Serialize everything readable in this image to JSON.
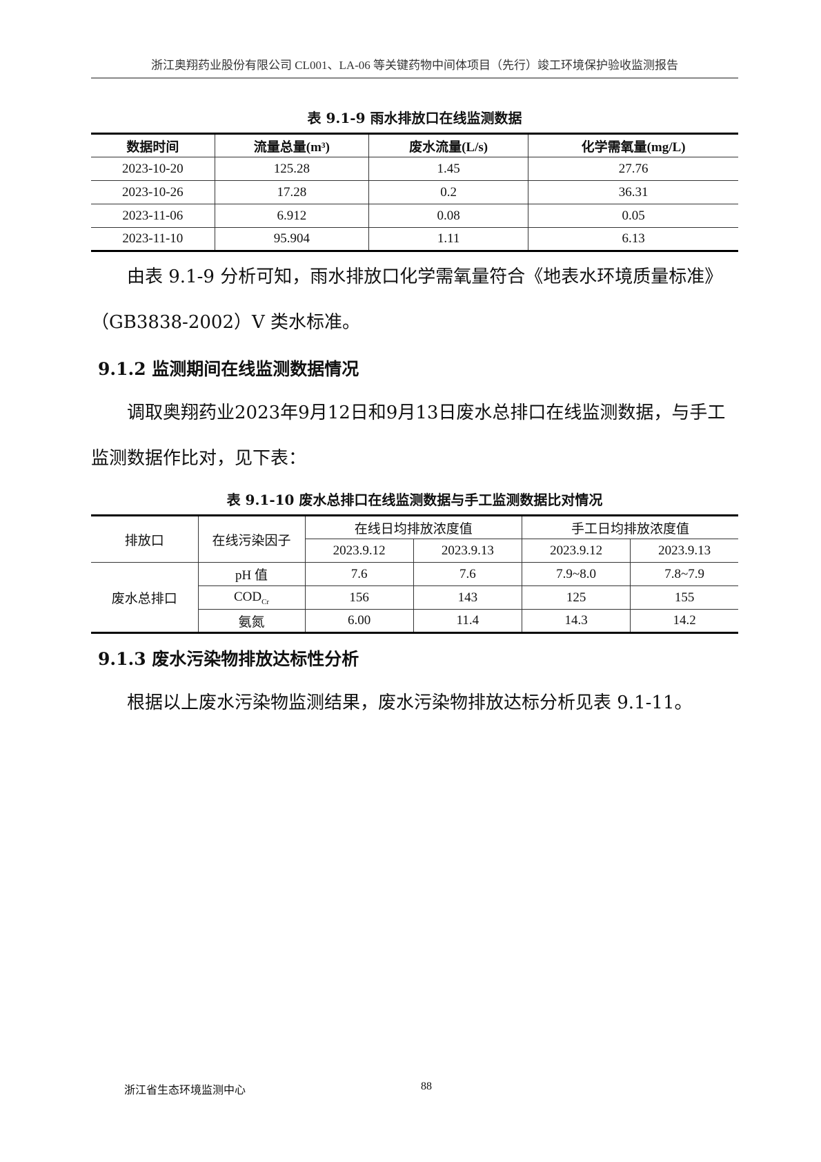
{
  "header": "浙江奥翔药业股份有限公司 CL001、LA-06 等关键药物中间体项目（先行）竣工环境保护验收监测报告",
  "table1": {
    "caption": "表 9.1-9  雨水排放口在线监测数据",
    "headers": [
      "数据时间",
      "流量总量(m³)",
      "废水流量(L/s)",
      "化学需氧量(mg/L)"
    ],
    "rows": [
      [
        "2023-10-20",
        "125.28",
        "1.45",
        "27.76"
      ],
      [
        "2023-10-26",
        "17.28",
        "0.2",
        "36.31"
      ],
      [
        "2023-11-06",
        "6.912",
        "0.08",
        "0.05"
      ],
      [
        "2023-11-10",
        "95.904",
        "1.11",
        "6.13"
      ]
    ]
  },
  "para1": "由表 9.1-9 分析可知，雨水排放口化学需氧量符合《地表水环境质量标准》（GB3838-2002）V 类水标准。",
  "section2": "9.1.2 监测期间在线监测数据情况",
  "para2": "调取奥翔药业2023年9月12日和9月13日废水总排口在线监测数据，与手工监测数据作比对，见下表：",
  "table2": {
    "caption": "表 9.1-10  废水总排口在线监测数据与手工监测数据比对情况",
    "h_outlet": "排放口",
    "h_factor": "在线污染因子",
    "h_online": "在线日均排放浓度值",
    "h_manual": "手工日均排放浓度值",
    "dates": [
      "2023.9.12",
      "2023.9.13",
      "2023.9.12",
      "2023.9.13"
    ],
    "outlet": "废水总排口",
    "rows": [
      {
        "factor": "pH 值",
        "sub": "",
        "v": [
          "7.6",
          "7.6",
          "7.9~8.0",
          "7.8~7.9"
        ]
      },
      {
        "factor": "COD",
        "sub": "Cr",
        "v": [
          "156",
          "143",
          "125",
          "155"
        ]
      },
      {
        "factor": "氨氮",
        "sub": "",
        "v": [
          "6.00",
          "11.4",
          "14.3",
          "14.2"
        ]
      }
    ]
  },
  "section3": "9.1.3  废水污染物排放达标性分析",
  "para3": "根据以上废水污染物监测结果，废水污染物排放达标分析见表 9.1-11。",
  "footer": "浙江省生态环境监测中心",
  "page_number": "88"
}
